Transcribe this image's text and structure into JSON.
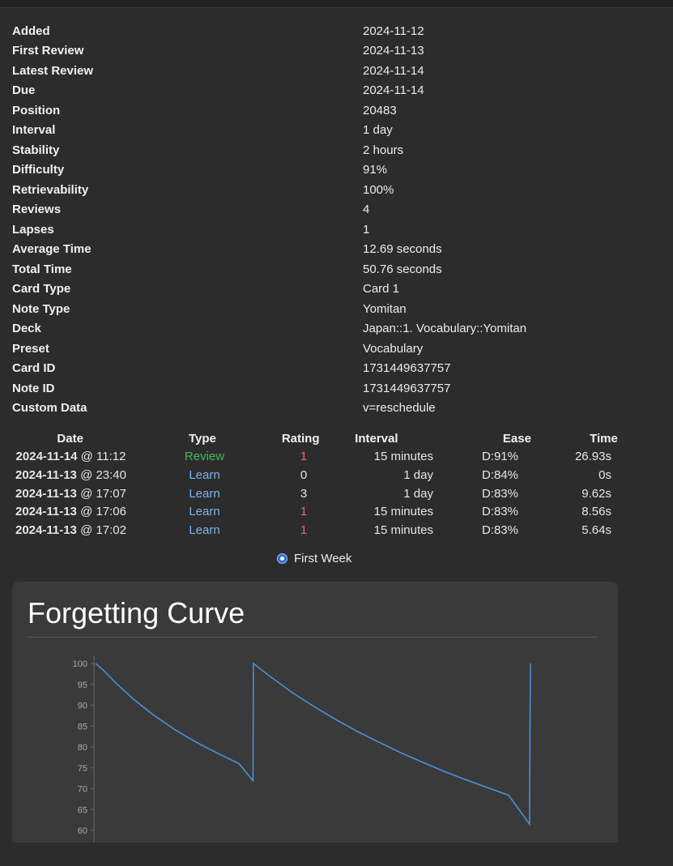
{
  "info": [
    {
      "label": "Added",
      "value": "2024-11-12"
    },
    {
      "label": "First Review",
      "value": "2024-11-13"
    },
    {
      "label": "Latest Review",
      "value": "2024-11-14"
    },
    {
      "label": "Due",
      "value": "2024-11-14"
    },
    {
      "label": "Position",
      "value": "20483"
    },
    {
      "label": "Interval",
      "value": "1 day"
    },
    {
      "label": "Stability",
      "value": "2 hours"
    },
    {
      "label": "Difficulty",
      "value": "91%"
    },
    {
      "label": "Retrievability",
      "value": "100%"
    },
    {
      "label": "Reviews",
      "value": "4"
    },
    {
      "label": "Lapses",
      "value": "1"
    },
    {
      "label": "Average Time",
      "value": "12.69 seconds"
    },
    {
      "label": "Total Time",
      "value": "50.76 seconds"
    },
    {
      "label": "Card Type",
      "value": "Card 1"
    },
    {
      "label": "Note Type",
      "value": "Yomitan"
    },
    {
      "label": "Deck",
      "value": "Japan::1. Vocabulary::Yomitan"
    },
    {
      "label": "Preset",
      "value": "Vocabulary"
    },
    {
      "label": "Card ID",
      "value": "1731449637757"
    },
    {
      "label": "Note ID",
      "value": "1731449637757"
    },
    {
      "label": "Custom Data",
      "value": "v=reschedule"
    }
  ],
  "revlog": {
    "headers": {
      "date": "Date",
      "type": "Type",
      "rating": "Rating",
      "interval": "Interval",
      "ease": "Ease",
      "time": "Time"
    },
    "rows": [
      {
        "date": "2024-11-14",
        "time_of_day": "@ 11:12",
        "type": "Review",
        "rating": "1",
        "interval": "15 minutes",
        "ease": "D:91%",
        "time": "26.93s"
      },
      {
        "date": "2024-11-13",
        "time_of_day": "@ 23:40",
        "type": "Learn",
        "rating": "0",
        "interval": "1 day",
        "ease": "D:84%",
        "time": "0s"
      },
      {
        "date": "2024-11-13",
        "time_of_day": "@ 17:07",
        "type": "Learn",
        "rating": "3",
        "interval": "1 day",
        "ease": "D:83%",
        "time": "9.62s"
      },
      {
        "date": "2024-11-13",
        "time_of_day": "@ 17:06",
        "type": "Learn",
        "rating": "1",
        "interval": "15 minutes",
        "ease": "D:83%",
        "time": "8.56s"
      },
      {
        "date": "2024-11-13",
        "time_of_day": "@ 17:02",
        "type": "Learn",
        "rating": "1",
        "interval": "15 minutes",
        "ease": "D:83%",
        "time": "5.64s"
      }
    ]
  },
  "colors": {
    "review": "#3bbd5a",
    "learn": "#7fb3ea",
    "again": "#ea6a6a",
    "curve": "#4a90d9"
  },
  "range_option": "First Week",
  "forgetting_curve": {
    "title": "Forgetting Curve"
  },
  "chart_data": {
    "type": "line",
    "title": "Forgetting Curve",
    "xlabel": "",
    "ylabel": "",
    "ylim": [
      60,
      100
    ],
    "yticks": [
      100,
      95,
      90,
      85,
      80,
      75,
      70,
      65,
      60
    ],
    "x_range": [
      0,
      1
    ],
    "series": [
      {
        "values": [
          [
            0.0,
            100
          ],
          [
            0.02,
            98.2
          ],
          [
            0.05,
            95.0
          ],
          [
            0.09,
            91.2
          ],
          [
            0.13,
            87.9
          ],
          [
            0.18,
            84.3
          ],
          [
            0.23,
            81.2
          ],
          [
            0.28,
            78.5
          ],
          [
            0.33,
            76.0
          ],
          [
            0.362,
            71.9
          ],
          [
            0.363,
            100
          ],
          [
            0.4,
            97.0
          ],
          [
            0.45,
            93.2
          ],
          [
            0.5,
            89.8
          ],
          [
            0.55,
            86.7
          ],
          [
            0.6,
            83.8
          ],
          [
            0.65,
            81.2
          ],
          [
            0.7,
            78.7
          ],
          [
            0.75,
            76.4
          ],
          [
            0.8,
            74.2
          ],
          [
            0.85,
            72.2
          ],
          [
            0.9,
            70.3
          ],
          [
            0.95,
            68.4
          ],
          [
            0.998,
            61.5
          ],
          [
            0.999,
            87
          ],
          [
            1.0,
            100
          ]
        ]
      }
    ]
  }
}
